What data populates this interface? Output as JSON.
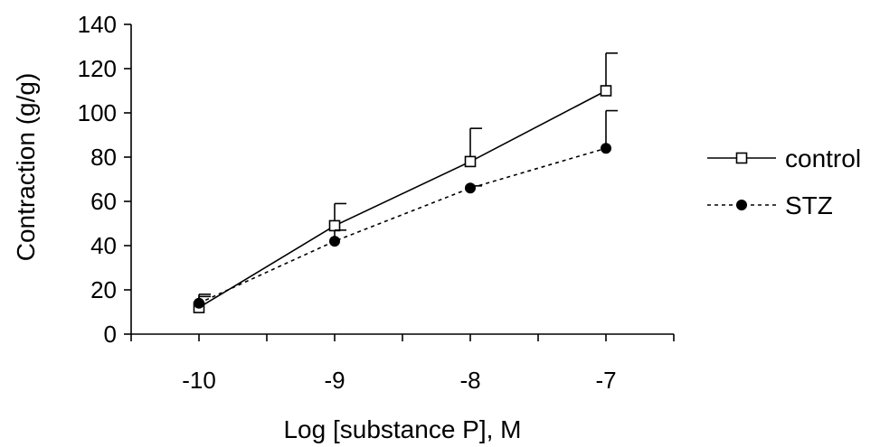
{
  "chart_data": {
    "type": "line",
    "xlabel": "Log [substance P], M",
    "ylabel": "Contraction (g/g)",
    "x": [
      -10,
      -9,
      -8,
      -7
    ],
    "xticks": [
      "-10",
      "-9",
      "-8",
      "-7"
    ],
    "xlim": [
      -10.5,
      -6.5
    ],
    "ylim": [
      0,
      140
    ],
    "yticks": [
      "0",
      "20",
      "40",
      "60",
      "80",
      "100",
      "120",
      "140"
    ],
    "grid": false,
    "legend_position": "right",
    "series": [
      {
        "name": "control",
        "marker": "open-square",
        "line_style": "solid",
        "values": [
          12,
          49,
          78,
          110
        ],
        "error_upper": [
          17,
          59,
          93,
          127
        ]
      },
      {
        "name": "STZ",
        "marker": "filled-circle",
        "line_style": "dotted",
        "values": [
          14,
          42,
          66,
          84
        ],
        "error_upper": [
          18,
          47,
          67,
          101
        ]
      }
    ]
  }
}
